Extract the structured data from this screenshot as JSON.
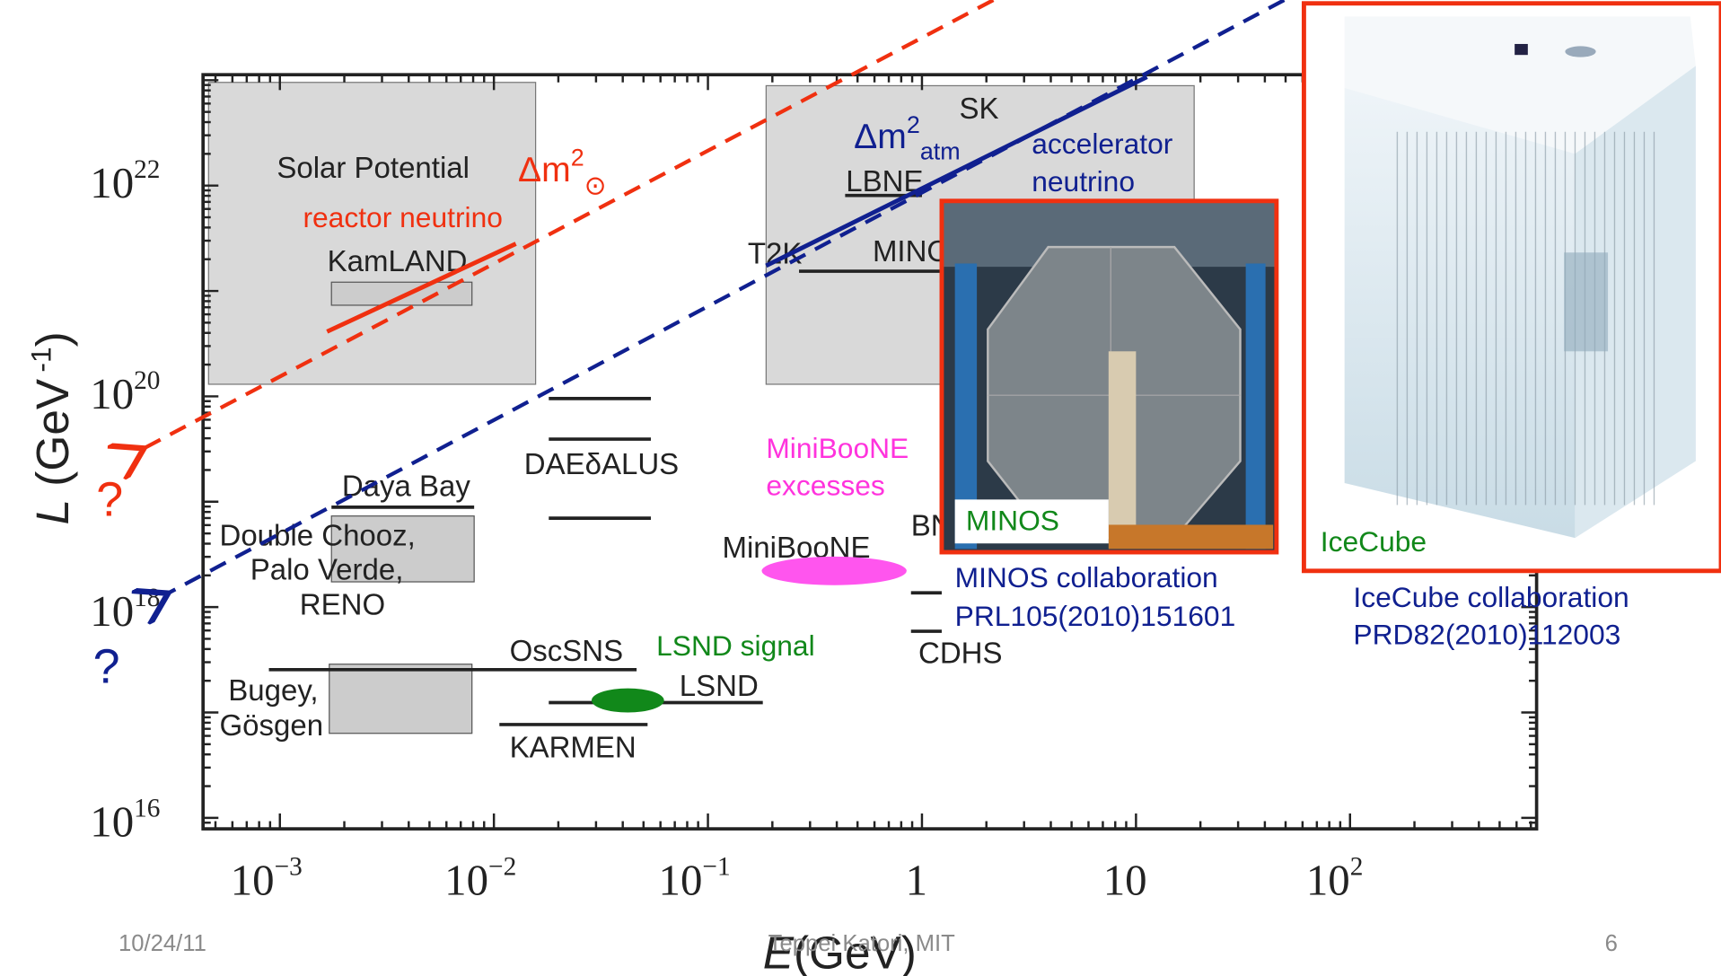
{
  "plot": {
    "y_axis_label": {
      "symbol": "L",
      "unit": "(GeV",
      "exp": "-1",
      "close": ")"
    },
    "x_axis_label": {
      "symbol": "E",
      "unit": "(GeV)"
    },
    "y_ticks": [
      {
        "base": "10",
        "exp": "22"
      },
      {
        "base": "10",
        "exp": "20"
      },
      {
        "base": "10",
        "exp": "18"
      },
      {
        "base": "10",
        "exp": "16"
      }
    ],
    "x_ticks": [
      {
        "base": "10",
        "exp": "−3"
      },
      {
        "base": "10",
        "exp": "−2"
      },
      {
        "base": "10",
        "exp": "−1"
      },
      {
        "base": "1",
        "exp": ""
      },
      {
        "base": "10",
        "exp": ""
      },
      {
        "base": "10",
        "exp": "2"
      }
    ],
    "experiments": [
      "Solar Potential",
      "KamLAND",
      "SK",
      "LBNE",
      "T2K",
      "MINO",
      "Daya Bay",
      "Double Chooz,",
      "Palo Verde,",
      "RENO",
      "DAEδALUS",
      "OscSNS",
      "LSND",
      "KARMEN",
      "Bugey,",
      "Gösgen",
      "MiniBooNE",
      "BN",
      "CDHS"
    ]
  },
  "annotations": {
    "solar_dm2": {
      "delta": "Δm",
      "sup": "2",
      "sub": "⊙"
    },
    "reactor": "reactor neutrino",
    "atm_dm2": {
      "delta": "Δm",
      "sup": "2",
      "sub": "atm"
    },
    "accelerator": [
      "accelerator",
      "neutrino"
    ],
    "miniboone": [
      "MiniBooNE",
      "excesses"
    ],
    "lsnd": "LSND signal",
    "question_red": "?",
    "question_blue": "?"
  },
  "photos": {
    "minos": {
      "label": "MINOS",
      "caption": [
        "MINOS collaboration",
        "PRL105(2010)151601"
      ]
    },
    "icecube": {
      "label": "IceCube",
      "caption": [
        "IceCube collaboration",
        "PRD82(2010)112003"
      ]
    }
  },
  "footer": {
    "date": "10/24/11",
    "author": "Teppei Katori, MIT",
    "page": "6"
  }
}
